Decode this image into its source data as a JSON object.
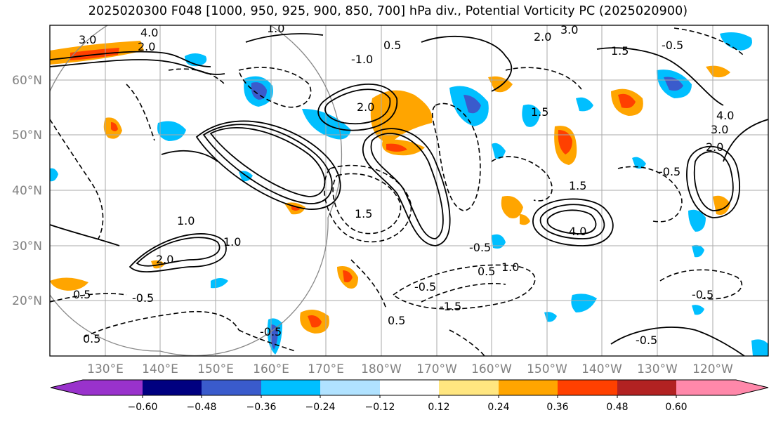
{
  "title": "2025020300 F048 [1000, 950, 925, 900, 850, 700] hPa div., Potential Vorticity PC (2025020900)",
  "map": {
    "lat_labels": [
      "60°N",
      "50°N",
      "40°N",
      "30°N",
      "20°N"
    ],
    "lon_labels": [
      "130°E",
      "140°E",
      "150°E",
      "160°E",
      "170°E",
      "180°W",
      "170°W",
      "160°W",
      "150°W",
      "140°W",
      "130°W",
      "120°W"
    ],
    "contour_labels": [
      "4.0",
      "3.0",
      "2.0",
      "3.0",
      "2.0",
      "1.5",
      "2.0",
      "3.0",
      "4.0",
      "1.5",
      "2.0",
      "4.0",
      "1.0",
      "1.0",
      "1.5",
      "0.5",
      "-0.5",
      "-0.5",
      "-0.5",
      "-0.5",
      "-0.5",
      "-0.5",
      "0.5",
      "0.5",
      "1.0",
      "2.0",
      "-1.5",
      "-1.0",
      "1.0",
      "0.5",
      "-0.5",
      "1.5",
      "-0.5",
      "0.5"
    ],
    "colors": {
      "grid": "#aaaaaa",
      "contour": "#000000",
      "circle": "#888888"
    }
  },
  "colorbar": {
    "ticks": [
      "−0.60",
      "−0.48",
      "−0.36",
      "−0.24",
      "−0.12",
      "0.12",
      "0.24",
      "0.36",
      "0.48",
      "0.60"
    ],
    "colors": [
      "#9932cc",
      "#000080",
      "#3a5bcc",
      "#00bfff",
      "#b0e2ff",
      "#ffffff",
      "#ffe680",
      "#ffa500",
      "#ff4000",
      "#b22222",
      "#ff88aa"
    ]
  }
}
